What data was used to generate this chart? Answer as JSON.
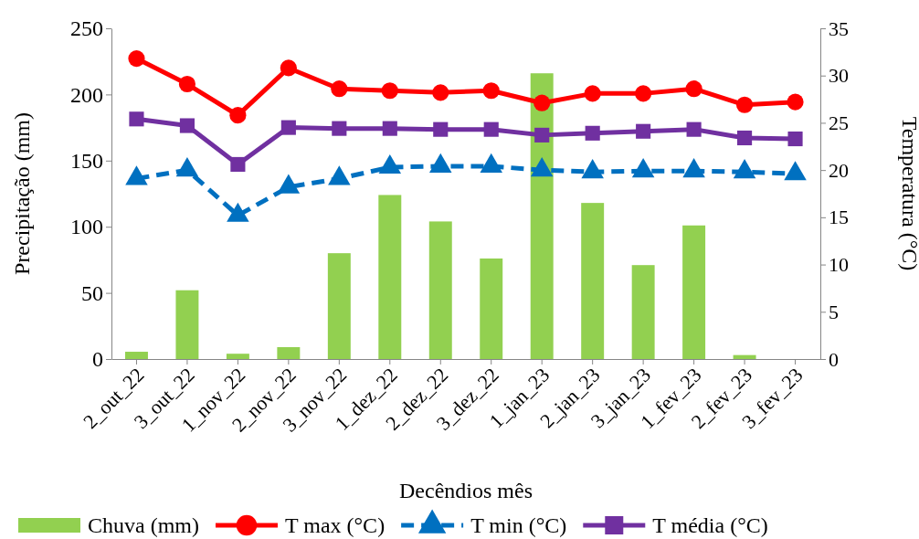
{
  "chart_data": {
    "type": "bar",
    "xlabel": "Decêndios mês",
    "ylabel": "Precipitação (mm)",
    "y2label": "Temperatura (°C)",
    "categories": [
      "2_out_22",
      "3_out_22",
      "1_nov_22",
      "2_nov_22",
      "3_nov_22",
      "1_dez_22",
      "2_dez_22",
      "3_dez_22",
      "1_jan_23",
      "2_jan_23",
      "3_jan_23",
      "1_fev_23",
      "2_fev_23",
      "3_fev_23"
    ],
    "ylim": [
      0,
      250
    ],
    "yticks": [
      0,
      50,
      100,
      150,
      200,
      250
    ],
    "y2lim": [
      0,
      35
    ],
    "y2ticks": [
      0,
      5,
      10,
      15,
      20,
      25,
      30,
      35
    ],
    "legend": "bottom",
    "grid": false,
    "series": [
      {
        "name": "Chuva (mm)",
        "color": "#92d050",
        "values": [
          5.5,
          52,
          4,
          9,
          80,
          124,
          104,
          76,
          216,
          118,
          71,
          101,
          3,
          0
        ]
      },
      {
        "name": "T max (°C)",
        "type": "line",
        "axis": "y2",
        "color": "#ff0000",
        "marker": "circle",
        "line_style": "solid",
        "values": [
          31.8,
          29.1,
          25.8,
          30.8,
          28.6,
          28.4,
          28.2,
          28.4,
          27.1,
          28.1,
          28.1,
          28.6,
          26.9,
          27.2
        ]
      },
      {
        "name": "T min (°C)",
        "type": "line",
        "axis": "y2",
        "color": "#0070c0",
        "marker": "triangle",
        "line_style": "dashed",
        "values": [
          19.1,
          20.0,
          15.2,
          18.2,
          19.1,
          20.3,
          20.4,
          20.4,
          20.0,
          19.8,
          19.9,
          19.9,
          19.8,
          19.6
        ]
      },
      {
        "name": "T média (°C)",
        "type": "line",
        "axis": "y2",
        "color": "#7030a0",
        "marker": "square",
        "line_style": "solid",
        "values": [
          25.4,
          24.7,
          20.6,
          24.5,
          24.4,
          24.4,
          24.3,
          24.3,
          23.7,
          23.9,
          24.1,
          24.3,
          23.4,
          23.3
        ]
      }
    ]
  }
}
